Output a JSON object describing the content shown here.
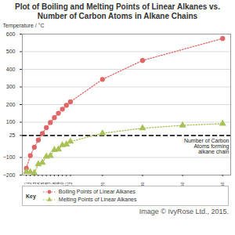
{
  "chart_data": {
    "type": "line",
    "title": "Plot of Boiling and Melting Points of Linear Alkanes vs. Number of Carbon Atoms in Alkane Chains",
    "ylabel": "Temperature / °C",
    "xlabel": "Number of Carbon Atoms forming alkane chain",
    "legend_title": "Key",
    "caption": "Image © IvyRose Ltd., 2015.",
    "axis_line_y": 25,
    "xlim": [
      0,
      52
    ],
    "xticks": [
      1,
      2,
      3,
      4,
      5,
      6,
      7,
      8,
      9,
      10,
      11,
      12,
      20,
      30,
      40,
      50
    ],
    "ylim": [
      -200,
      600
    ],
    "yticks": [
      -200,
      -100,
      25,
      100,
      200,
      300,
      400,
      500,
      600
    ],
    "grid": true,
    "legend": "bottom",
    "series": [
      {
        "name": "Boiling Points of Linear Alkanes",
        "color": "#e06666",
        "marker": "circle",
        "line_style": "dotted",
        "x": [
          1,
          2,
          3,
          4,
          5,
          6,
          7,
          8,
          9,
          10,
          11,
          12,
          20,
          30,
          50
        ],
        "values": [
          -162,
          -89,
          -42,
          -1,
          36,
          69,
          98,
          126,
          151,
          174,
          196,
          216,
          343,
          450,
          575
        ]
      },
      {
        "name": "Melting Points of Linear Alkanes",
        "color": "#a8c256",
        "marker": "triangle",
        "line_style": "dotted",
        "x": [
          1,
          2,
          3,
          4,
          5,
          6,
          7,
          8,
          9,
          10,
          11,
          12,
          20,
          30,
          40,
          50
        ],
        "values": [
          -182,
          -183,
          -188,
          -138,
          -130,
          -95,
          -91,
          -57,
          -54,
          -30,
          -26,
          -10,
          37,
          66,
          82,
          92
        ]
      }
    ]
  }
}
